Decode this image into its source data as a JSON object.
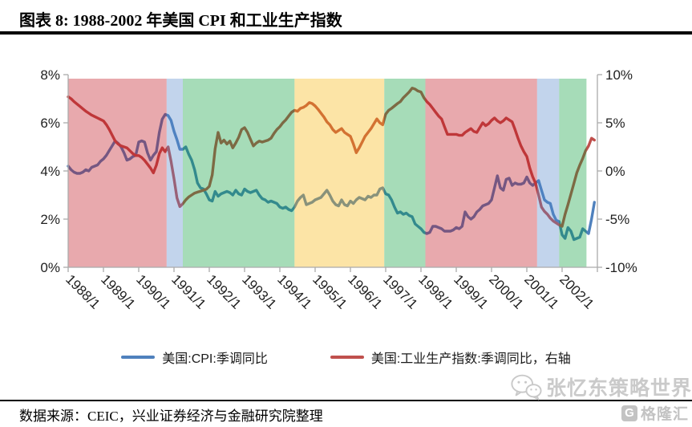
{
  "title": "图表 8: 1988-2002 年美国 CPI 和工业生产指数",
  "source": "数据来源：CEIC，兴业证券经济与金融研究院整理",
  "watermark": {
    "text": "张忆东策略世界",
    "brand": "格隆汇",
    "brand_letter": "G"
  },
  "legend": [
    {
      "label": "美国:CPI:季调同比",
      "color": "#4F81BD"
    },
    {
      "label": "美国:工业生产指数:季调同比，右轴",
      "color": "#C0504D"
    }
  ],
  "chart_data": {
    "type": "line",
    "total_months": 180,
    "x_start": "1988/1",
    "x_end": "2002/12",
    "x_tick_labels": [
      "1988/1",
      "1989/1",
      "1990/1",
      "1991/1",
      "1992/1",
      "1993/1",
      "1994/1",
      "1995/1",
      "1996/1",
      "1997/1",
      "1998/1",
      "1999/1",
      "2000/1",
      "2001/1",
      "2002/1"
    ],
    "x_tick_months": [
      0,
      12,
      24,
      36,
      48,
      60,
      72,
      84,
      96,
      108,
      120,
      132,
      144,
      156,
      168
    ],
    "left_axis": {
      "min": 0,
      "max": 8,
      "tick_values": [
        0,
        2,
        4,
        6,
        8
      ],
      "tick_labels": [
        "0%",
        "2%",
        "4%",
        "6%",
        "8%"
      ]
    },
    "right_axis": {
      "min": -10,
      "max": 10,
      "tick_values": [
        -10,
        -5,
        0,
        5,
        10
      ],
      "tick_labels": [
        "-10%",
        "-5%",
        "0%",
        "5%",
        "10%"
      ]
    },
    "band_opacity": 0.35,
    "bands": [
      {
        "start_month": 0,
        "end_month": 33.5,
        "color": "#BD0915"
      },
      {
        "start_month": 33.5,
        "end_month": 39,
        "color": "#5184C9"
      },
      {
        "start_month": 39,
        "end_month": 77,
        "color": "#009B34"
      },
      {
        "start_month": 77,
        "end_month": 107.5,
        "color": "#F6B200"
      },
      {
        "start_month": 107.5,
        "end_month": 121.5,
        "color": "#009B34"
      },
      {
        "start_month": 121.5,
        "end_month": 159.5,
        "color": "#BD0915"
      },
      {
        "start_month": 159.5,
        "end_month": 167,
        "color": "#5184C9"
      },
      {
        "start_month": 167,
        "end_month": 176.3,
        "color": "#009B34"
      }
    ],
    "series": [
      {
        "id": "cpi",
        "name": "美国:CPI:季调同比",
        "axis": "left",
        "color": "#4F81BD",
        "values": [
          4.2,
          4.05,
          3.95,
          3.9,
          3.9,
          3.95,
          4.05,
          4.0,
          4.15,
          4.2,
          4.25,
          4.4,
          4.5,
          4.65,
          4.85,
          5.05,
          5.25,
          5.15,
          5.0,
          4.75,
          4.45,
          4.5,
          4.6,
          4.65,
          5.2,
          5.25,
          5.2,
          4.75,
          4.45,
          4.65,
          4.8,
          5.6,
          6.15,
          6.35,
          6.3,
          6.1,
          5.65,
          5.3,
          4.9,
          4.9,
          5.0,
          4.7,
          4.45,
          4.05,
          3.5,
          3.3,
          3.25,
          3.05,
          2.8,
          2.75,
          3.15,
          2.95,
          3.05,
          3.1,
          3.15,
          3.1,
          3.0,
          3.2,
          3.05,
          3.0,
          3.25,
          3.15,
          3.1,
          3.15,
          3.2,
          3.0,
          2.85,
          2.8,
          2.7,
          2.75,
          2.7,
          2.65,
          2.5,
          2.45,
          2.5,
          2.4,
          2.35,
          2.5,
          2.75,
          2.9,
          3.0,
          2.6,
          2.65,
          2.7,
          2.8,
          2.85,
          2.9,
          3.05,
          3.2,
          3.0,
          2.75,
          2.6,
          2.55,
          2.8,
          2.6,
          2.55,
          2.75,
          2.65,
          2.8,
          2.9,
          2.85,
          2.8,
          2.95,
          2.9,
          3.0,
          3.0,
          3.25,
          3.3,
          3.05,
          3.0,
          2.8,
          2.5,
          2.25,
          2.3,
          2.2,
          2.25,
          2.15,
          2.1,
          1.8,
          1.7,
          1.6,
          1.45,
          1.4,
          1.45,
          1.7,
          1.7,
          1.65,
          1.6,
          1.5,
          1.5,
          1.5,
          1.55,
          1.65,
          1.6,
          1.7,
          2.3,
          2.1,
          2.0,
          2.1,
          2.3,
          2.4,
          2.55,
          2.6,
          2.65,
          2.8,
          3.3,
          3.8,
          3.3,
          3.2,
          3.65,
          3.7,
          3.4,
          3.5,
          3.45,
          3.45,
          3.5,
          3.75,
          3.5,
          3.4,
          3.5,
          3.6,
          3.2,
          2.8,
          2.7,
          2.65,
          2.2,
          1.95,
          1.9,
          1.35,
          1.2,
          1.65,
          1.5,
          1.15,
          1.2,
          1.25,
          1.6,
          1.5,
          1.4,
          2.0,
          2.7
        ]
      },
      {
        "id": "ip",
        "name": "美国:工业生产指数:季调同比，右轴",
        "axis": "right",
        "color": "#C0504D",
        "values": [
          7.7,
          7.5,
          7.2,
          6.95,
          6.7,
          6.45,
          6.2,
          6.0,
          5.8,
          5.65,
          5.5,
          5.35,
          5.2,
          4.8,
          4.3,
          3.7,
          3.1,
          2.8,
          2.6,
          2.5,
          2.4,
          2.1,
          1.8,
          1.6,
          1.6,
          1.4,
          1.1,
          0.7,
          0.3,
          -0.2,
          0.6,
          1.8,
          2.4,
          2.0,
          2.5,
          1.0,
          -0.8,
          -2.8,
          -3.7,
          -3.4,
          -3.0,
          -2.7,
          -2.5,
          -2.3,
          -2.2,
          -2.1,
          -2.0,
          -1.9,
          -1.6,
          -0.4,
          2.3,
          4.0,
          2.9,
          3.2,
          2.8,
          3.1,
          2.4,
          2.9,
          3.5,
          4.3,
          4.5,
          4.0,
          3.3,
          2.6,
          2.9,
          3.1,
          3.0,
          3.1,
          3.2,
          3.4,
          3.9,
          4.3,
          4.6,
          5.0,
          5.3,
          5.7,
          6.1,
          6.3,
          6.2,
          6.5,
          6.6,
          6.8,
          7.1,
          7.0,
          6.75,
          6.4,
          6.0,
          5.6,
          5.1,
          4.8,
          4.3,
          4.0,
          4.2,
          4.4,
          4.0,
          3.8,
          3.6,
          2.8,
          1.9,
          2.4,
          3.0,
          3.6,
          4.0,
          4.4,
          4.9,
          5.4,
          5.0,
          4.8,
          5.9,
          6.3,
          6.5,
          6.75,
          7.0,
          7.2,
          7.6,
          7.9,
          8.2,
          8.6,
          8.5,
          8.3,
          8.2,
          7.6,
          7.2,
          6.9,
          6.5,
          6.1,
          5.7,
          5.4,
          4.6,
          3.8,
          3.8,
          3.8,
          3.8,
          3.7,
          3.7,
          4.0,
          4.2,
          4.4,
          4.1,
          4.0,
          4.5,
          5.0,
          4.7,
          4.9,
          5.25,
          5.5,
          5.2,
          5.0,
          5.2,
          5.5,
          5.3,
          5.1,
          4.3,
          3.4,
          2.6,
          2.0,
          1.5,
          0.3,
          -0.6,
          -1.3,
          -2.5,
          -3.75,
          -4.2,
          -4.5,
          -4.9,
          -5.2,
          -5.4,
          -5.6,
          -5.75,
          -4.5,
          -3.5,
          -2.4,
          -1.3,
          -0.2,
          0.6,
          1.3,
          2.1,
          2.6,
          3.4,
          3.2
        ]
      }
    ]
  }
}
